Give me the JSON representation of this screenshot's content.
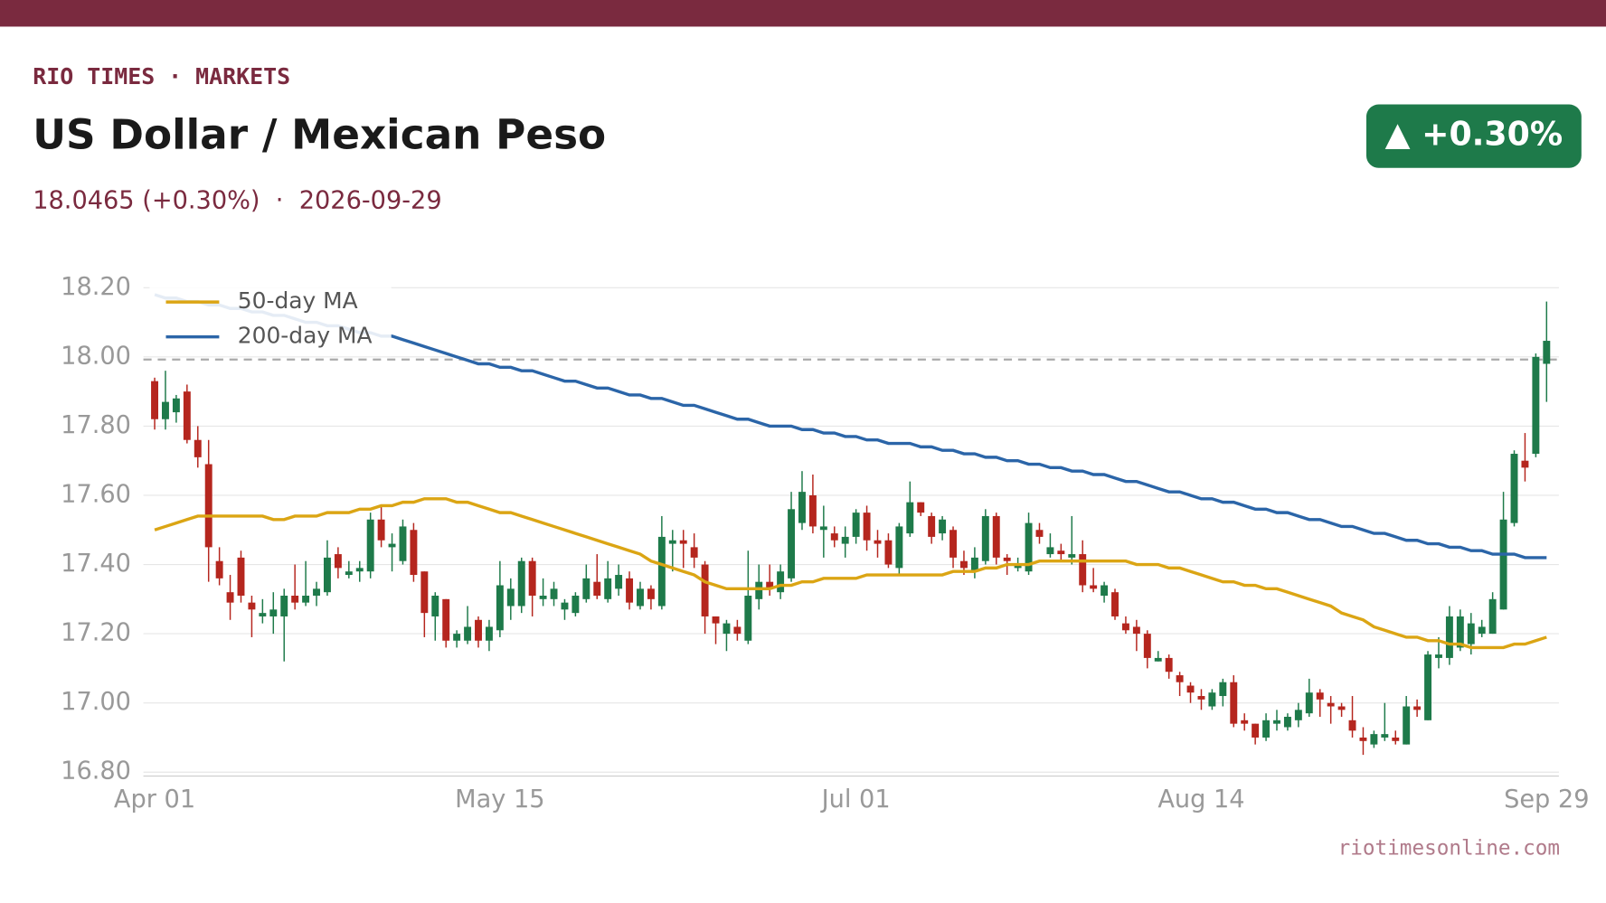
{
  "header": {
    "kicker": "RIO TIMES · MARKETS",
    "title": "US Dollar / Mexican Peso",
    "subtitle": "18.0465 (+0.30%)  ·  2026-09-29",
    "badge": "▲ +0.30%"
  },
  "chart_data": {
    "type": "candlestick",
    "categories": [
      "Apr 01",
      null,
      null,
      null,
      null,
      null,
      null,
      null,
      null,
      null,
      null,
      null,
      null,
      null,
      null,
      null,
      null,
      null,
      null,
      null,
      null,
      null,
      null,
      null,
      null,
      null,
      null,
      null,
      null,
      null,
      null,
      null,
      "May 15",
      null,
      null,
      null,
      null,
      null,
      null,
      null,
      null,
      null,
      null,
      null,
      null,
      null,
      null,
      null,
      null,
      null,
      null,
      null,
      null,
      null,
      null,
      null,
      null,
      null,
      null,
      null,
      null,
      null,
      null,
      null,
      null,
      "Jul 01",
      null,
      null,
      null,
      null,
      null,
      null,
      null,
      null,
      null,
      null,
      null,
      null,
      null,
      null,
      null,
      null,
      null,
      null,
      null,
      null,
      null,
      null,
      null,
      null,
      null,
      null,
      null,
      null,
      null,
      null,
      null,
      "Aug 14",
      null,
      null,
      null,
      null,
      null,
      null,
      null,
      null,
      null,
      null,
      null,
      null,
      null,
      null,
      null,
      null,
      null,
      null,
      null,
      null,
      null,
      null,
      null,
      null,
      null,
      null,
      null,
      null,
      null,
      null,
      null,
      "Sep 29"
    ],
    "open": [
      17.93,
      17.82,
      17.84,
      17.9,
      17.76,
      17.69,
      17.41,
      17.32,
      17.42,
      17.29,
      17.25,
      17.25,
      17.25,
      17.31,
      17.29,
      17.31,
      17.32,
      17.43,
      17.37,
      17.38,
      17.38,
      17.53,
      17.45,
      17.41,
      17.5,
      17.38,
      17.25,
      17.3,
      17.18,
      17.18,
      17.24,
      17.18,
      17.21,
      17.28,
      17.28,
      17.41,
      17.3,
      17.3,
      17.27,
      17.26,
      17.3,
      17.35,
      17.3,
      17.33,
      17.36,
      17.28,
      17.33,
      17.28,
      17.46,
      17.47,
      17.45,
      17.4,
      17.25,
      17.2,
      17.22,
      17.18,
      17.3,
      17.35,
      17.32,
      17.36,
      17.52,
      17.6,
      17.5,
      17.49,
      17.46,
      17.48,
      17.55,
      17.47,
      17.47,
      17.39,
      17.49,
      17.58,
      17.54,
      17.49,
      17.5,
      17.41,
      17.38,
      17.41,
      17.54,
      17.42,
      17.39,
      17.38,
      17.5,
      17.43,
      17.44,
      17.42,
      17.43,
      17.34,
      17.31,
      17.32,
      17.23,
      17.22,
      17.2,
      17.12,
      17.13,
      17.08,
      17.05,
      17.02,
      16.99,
      17.02,
      17.06,
      16.95,
      16.94,
      16.9,
      16.94,
      16.93,
      16.95,
      16.97,
      17.03,
      17.0,
      16.99,
      16.95,
      16.9,
      16.88,
      16.9,
      16.9,
      16.88,
      16.99,
      16.95,
      17.13,
      17.13,
      17.16,
      17.17,
      17.2,
      17.2,
      17.27,
      17.52,
      17.7,
      17.72,
      17.98
    ],
    "high": [
      17.94,
      17.96,
      17.89,
      17.92,
      17.8,
      17.76,
      17.45,
      17.37,
      17.44,
      17.31,
      17.3,
      17.32,
      17.33,
      17.4,
      17.41,
      17.35,
      17.47,
      17.45,
      17.41,
      17.41,
      17.55,
      17.57,
      17.49,
      17.53,
      17.52,
      17.38,
      17.32,
      17.3,
      17.21,
      17.28,
      17.25,
      17.24,
      17.41,
      17.36,
      17.42,
      17.42,
      17.36,
      17.35,
      17.3,
      17.32,
      17.4,
      17.43,
      17.41,
      17.4,
      17.38,
      17.35,
      17.34,
      17.54,
      17.5,
      17.5,
      17.49,
      17.41,
      17.25,
      17.24,
      17.24,
      17.44,
      17.4,
      17.4,
      17.4,
      17.61,
      17.67,
      17.66,
      17.57,
      17.51,
      17.51,
      17.56,
      17.57,
      17.5,
      17.49,
      17.52,
      17.64,
      17.58,
      17.55,
      17.54,
      17.51,
      17.44,
      17.45,
      17.56,
      17.55,
      17.43,
      17.42,
      17.55,
      17.52,
      17.49,
      17.46,
      17.54,
      17.47,
      17.39,
      17.35,
      17.33,
      17.25,
      17.24,
      17.21,
      17.15,
      17.14,
      17.09,
      17.06,
      17.04,
      17.04,
      17.07,
      17.08,
      16.97,
      16.94,
      16.97,
      16.98,
      16.97,
      17.0,
      17.07,
      17.04,
      17.02,
      17.0,
      17.02,
      16.93,
      16.92,
      17.0,
      16.92,
      17.02,
      17.01,
      17.15,
      17.19,
      17.28,
      17.27,
      17.26,
      17.24,
      17.32,
      17.61,
      17.73,
      17.78,
      18.01,
      18.16
    ],
    "low": [
      17.79,
      17.79,
      17.81,
      17.75,
      17.68,
      17.35,
      17.34,
      17.24,
      17.29,
      17.19,
      17.23,
      17.2,
      17.12,
      17.27,
      17.28,
      17.28,
      17.31,
      17.36,
      17.36,
      17.35,
      17.36,
      17.45,
      17.38,
      17.4,
      17.35,
      17.19,
      17.18,
      17.16,
      17.16,
      17.17,
      17.16,
      17.15,
      17.19,
      17.24,
      17.26,
      17.25,
      17.28,
      17.28,
      17.24,
      17.25,
      17.29,
      17.3,
      17.29,
      17.31,
      17.27,
      17.27,
      17.27,
      17.27,
      17.38,
      17.39,
      17.39,
      17.2,
      17.17,
      17.15,
      17.18,
      17.17,
      17.27,
      17.31,
      17.3,
      17.35,
      17.5,
      17.49,
      17.42,
      17.45,
      17.42,
      17.46,
      17.44,
      17.42,
      17.39,
      17.37,
      17.48,
      17.54,
      17.46,
      17.47,
      17.39,
      17.37,
      17.36,
      17.4,
      17.4,
      17.37,
      17.38,
      17.37,
      17.46,
      17.42,
      17.41,
      17.4,
      17.32,
      17.32,
      17.29,
      17.24,
      17.2,
      17.15,
      17.1,
      17.12,
      17.07,
      17.02,
      17.0,
      16.98,
      16.98,
      16.99,
      16.93,
      16.92,
      16.88,
      16.89,
      16.92,
      16.92,
      16.93,
      16.96,
      16.96,
      16.94,
      16.96,
      16.9,
      16.85,
      16.87,
      16.89,
      16.88,
      16.88,
      16.96,
      16.95,
      17.1,
      17.11,
      17.15,
      17.14,
      17.19,
      17.2,
      17.27,
      17.51,
      17.64,
      17.71,
      17.87
    ],
    "close": [
      17.82,
      17.87,
      17.88,
      17.76,
      17.71,
      17.45,
      17.36,
      17.29,
      17.31,
      17.27,
      17.26,
      17.27,
      17.31,
      17.29,
      17.31,
      17.33,
      17.42,
      17.39,
      17.38,
      17.39,
      17.53,
      17.47,
      17.46,
      17.51,
      17.37,
      17.26,
      17.31,
      17.18,
      17.2,
      17.22,
      17.18,
      17.22,
      17.34,
      17.33,
      17.41,
      17.31,
      17.31,
      17.33,
      17.29,
      17.31,
      17.36,
      17.31,
      17.36,
      17.37,
      17.29,
      17.33,
      17.3,
      17.48,
      17.47,
      17.46,
      17.42,
      17.25,
      17.23,
      17.23,
      17.2,
      17.31,
      17.35,
      17.33,
      17.38,
      17.56,
      17.61,
      17.51,
      17.51,
      17.47,
      17.48,
      17.55,
      17.47,
      17.46,
      17.4,
      17.51,
      17.58,
      17.55,
      17.48,
      17.53,
      17.42,
      17.39,
      17.42,
      17.54,
      17.42,
      17.41,
      17.4,
      17.52,
      17.48,
      17.45,
      17.43,
      17.43,
      17.34,
      17.33,
      17.34,
      17.25,
      17.21,
      17.2,
      17.13,
      17.13,
      17.09,
      17.06,
      17.03,
      17.01,
      17.03,
      17.06,
      16.94,
      16.94,
      16.9,
      16.95,
      16.95,
      16.96,
      16.98,
      17.03,
      17.01,
      16.99,
      16.98,
      16.92,
      16.89,
      16.91,
      16.91,
      16.89,
      16.99,
      16.98,
      17.14,
      17.14,
      17.25,
      17.25,
      17.23,
      17.22,
      17.3,
      17.53,
      17.72,
      17.68,
      18.0,
      18.0465
    ],
    "up_color": "#1e7a4a",
    "down_color": "#b5261e",
    "series": [
      {
        "name": "50-day MA",
        "color": "#dba514",
        "values": [
          17.5,
          17.51,
          17.52,
          17.53,
          17.54,
          17.54,
          17.54,
          17.54,
          17.54,
          17.54,
          17.54,
          17.53,
          17.53,
          17.54,
          17.54,
          17.54,
          17.55,
          17.55,
          17.55,
          17.56,
          17.56,
          17.57,
          17.57,
          17.58,
          17.58,
          17.59,
          17.59,
          17.59,
          17.58,
          17.58,
          17.57,
          17.56,
          17.55,
          17.55,
          17.54,
          17.53,
          17.52,
          17.51,
          17.5,
          17.49,
          17.48,
          17.47,
          17.46,
          17.45,
          17.44,
          17.43,
          17.41,
          17.4,
          17.39,
          17.38,
          17.37,
          17.35,
          17.34,
          17.33,
          17.33,
          17.33,
          17.33,
          17.33,
          17.34,
          17.34,
          17.35,
          17.35,
          17.36,
          17.36,
          17.36,
          17.36,
          17.37,
          17.37,
          17.37,
          17.37,
          17.37,
          17.37,
          17.37,
          17.37,
          17.38,
          17.38,
          17.38,
          17.39,
          17.39,
          17.4,
          17.4,
          17.4,
          17.41,
          17.41,
          17.41,
          17.41,
          17.41,
          17.41,
          17.41,
          17.41,
          17.41,
          17.4,
          17.4,
          17.4,
          17.39,
          17.39,
          17.38,
          17.37,
          17.36,
          17.35,
          17.35,
          17.34,
          17.34,
          17.33,
          17.33,
          17.32,
          17.31,
          17.3,
          17.29,
          17.28,
          17.26,
          17.25,
          17.24,
          17.22,
          17.21,
          17.2,
          17.19,
          17.19,
          17.18,
          17.18,
          17.17,
          17.17,
          17.16,
          17.16,
          17.16,
          17.16,
          17.17,
          17.17,
          17.18,
          17.19
        ]
      },
      {
        "name": "200-day MA",
        "color": "#2b65a8",
        "values": [
          18.18,
          18.17,
          18.17,
          18.16,
          18.16,
          18.15,
          18.15,
          18.14,
          18.14,
          18.13,
          18.13,
          18.12,
          18.12,
          18.11,
          18.1,
          18.1,
          18.09,
          18.09,
          18.08,
          18.07,
          18.07,
          18.06,
          18.06,
          18.05,
          18.04,
          18.03,
          18.02,
          18.01,
          18.0,
          17.99,
          17.98,
          17.98,
          17.97,
          17.97,
          17.96,
          17.96,
          17.95,
          17.94,
          17.93,
          17.93,
          17.92,
          17.91,
          17.91,
          17.9,
          17.89,
          17.89,
          17.88,
          17.88,
          17.87,
          17.86,
          17.86,
          17.85,
          17.84,
          17.83,
          17.82,
          17.82,
          17.81,
          17.8,
          17.8,
          17.8,
          17.79,
          17.79,
          17.78,
          17.78,
          17.77,
          17.77,
          17.76,
          17.76,
          17.75,
          17.75,
          17.75,
          17.74,
          17.74,
          17.73,
          17.73,
          17.72,
          17.72,
          17.71,
          17.71,
          17.7,
          17.7,
          17.69,
          17.69,
          17.68,
          17.68,
          17.67,
          17.67,
          17.66,
          17.66,
          17.65,
          17.64,
          17.64,
          17.63,
          17.62,
          17.61,
          17.61,
          17.6,
          17.59,
          17.59,
          17.58,
          17.58,
          17.57,
          17.56,
          17.56,
          17.55,
          17.55,
          17.54,
          17.53,
          17.53,
          17.52,
          17.51,
          17.51,
          17.5,
          17.49,
          17.49,
          17.48,
          17.47,
          17.47,
          17.46,
          17.46,
          17.45,
          17.45,
          17.44,
          17.44,
          17.43,
          17.43,
          17.43,
          17.42,
          17.42,
          17.42
        ]
      }
    ],
    "reference_line": 17.9925,
    "ylim": [
      16.78,
      18.22
    ],
    "yticks": [
      {
        "value": 16.8,
        "label": "16.80"
      },
      {
        "value": 17.0,
        "label": "17.00"
      },
      {
        "value": 17.2,
        "label": "17.20"
      },
      {
        "value": 17.4,
        "label": "17.40"
      },
      {
        "value": 17.6,
        "label": "17.60"
      },
      {
        "value": 17.8,
        "label": "17.80"
      },
      {
        "value": 18.0,
        "label": "18.00"
      },
      {
        "value": 18.2,
        "label": "18.20"
      }
    ],
    "grid": true,
    "legend": "upper left"
  },
  "footer": {
    "source": "riotimesonline.com"
  }
}
